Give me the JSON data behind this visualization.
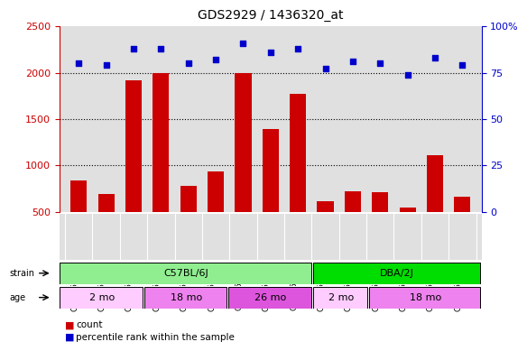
{
  "title": "GDS2929 / 1436320_at",
  "samples": [
    "GSM152256",
    "GSM152257",
    "GSM152258",
    "GSM152259",
    "GSM152260",
    "GSM152261",
    "GSM152262",
    "GSM152263",
    "GSM152264",
    "GSM152265",
    "GSM152266",
    "GSM152267",
    "GSM152268",
    "GSM152269",
    "GSM152270"
  ],
  "counts": [
    840,
    690,
    1920,
    2000,
    775,
    930,
    2000,
    1390,
    1770,
    610,
    720,
    710,
    540,
    1110,
    660
  ],
  "percentile_ranks": [
    80,
    79,
    88,
    88,
    80,
    82,
    91,
    86,
    88,
    77,
    81,
    80,
    74,
    83,
    79
  ],
  "ylim_left": [
    500,
    2500
  ],
  "ylim_right": [
    0,
    100
  ],
  "yticks_left": [
    500,
    1000,
    1500,
    2000,
    2500
  ],
  "yticks_right": [
    0,
    25,
    50,
    75,
    100
  ],
  "bar_color": "#cc0000",
  "dot_color": "#0000cc",
  "strain_groups": [
    {
      "label": "C57BL/6J",
      "start": 0,
      "end": 9,
      "color": "#90ee90"
    },
    {
      "label": "DBA/2J",
      "start": 9,
      "end": 15,
      "color": "#00dd00"
    }
  ],
  "age_groups": [
    {
      "label": "2 mo",
      "start": 0,
      "end": 3,
      "color": "#ffccff"
    },
    {
      "label": "18 mo",
      "start": 3,
      "end": 6,
      "color": "#ee82ee"
    },
    {
      "label": "26 mo",
      "start": 6,
      "end": 9,
      "color": "#dd55dd"
    },
    {
      "label": "2 mo",
      "start": 9,
      "end": 11,
      "color": "#ffccff"
    },
    {
      "label": "18 mo",
      "start": 11,
      "end": 15,
      "color": "#ee82ee"
    }
  ],
  "background_color": "#ffffff",
  "plot_bg_color": "#e0e0e0",
  "left_axis_color": "#cc0000",
  "right_axis_color": "#0000cc"
}
